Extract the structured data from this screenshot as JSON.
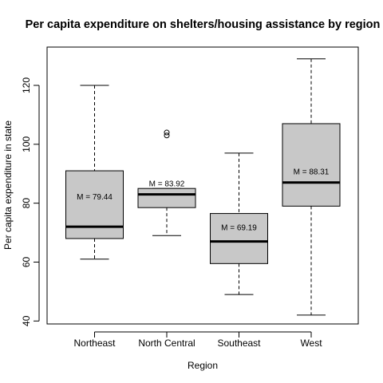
{
  "chart_data": {
    "type": "boxplot",
    "title": "Per capita expenditure on shelters/housing assistance by region",
    "xlabel": "Region",
    "ylabel": "Per capita expenditure in state",
    "ylim": [
      39,
      133
    ],
    "yticks": [
      40,
      60,
      80,
      100,
      120
    ],
    "categories": [
      "Northeast",
      "North Central",
      "Southeast",
      "West"
    ],
    "boxes": [
      {
        "category": "Northeast",
        "whisker_low": 61,
        "q1": 68,
        "median": 72,
        "q3": 91,
        "whisker_high": 120,
        "outliers": [],
        "mean_label": "M = 79.44",
        "mean_label_y": 82
      },
      {
        "category": "North Central",
        "whisker_low": 69,
        "q1": 78.5,
        "median": 83,
        "q3": 85,
        "whisker_high": 85,
        "outliers": [
          103,
          104
        ],
        "mean_label": "M = 83.92",
        "mean_label_y": 86.5
      },
      {
        "category": "Southeast",
        "whisker_low": 49,
        "q1": 59.5,
        "median": 67,
        "q3": 76.5,
        "whisker_high": 97,
        "outliers": [],
        "mean_label": "M = 69.19",
        "mean_label_y": 71.5
      },
      {
        "category": "West",
        "whisker_low": 42,
        "q1": 79,
        "median": 87,
        "q3": 107,
        "whisker_high": 129,
        "outliers": [],
        "mean_label": "M = 88.31",
        "mean_label_y": 90.5
      }
    ],
    "box_fill": "#c8c8c8",
    "grid": false,
    "legend": "none"
  }
}
